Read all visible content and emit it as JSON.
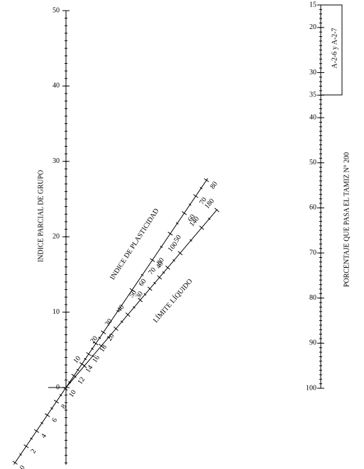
{
  "left_axis": {
    "title": "INDICE PARCIAL DE GRUPO",
    "ticks": [
      0,
      10,
      20,
      30,
      40,
      50
    ]
  },
  "right_axis": {
    "title": "PORCENTAJE QUE PASA EL TAMIZ N° 200",
    "ticks": [
      15,
      20,
      30,
      35,
      40,
      50,
      60,
      70,
      80,
      90,
      100
    ],
    "box_label": "A-2-6 y A-2-7"
  },
  "plasticity_index": {
    "title": "INDICE DE PLASTICIDAD",
    "ticks": [
      0,
      2,
      4,
      6,
      8,
      10,
      12,
      14,
      16,
      18,
      20,
      30,
      40,
      50,
      60,
      70,
      80
    ]
  },
  "liquid_limit": {
    "title": "LÍMITE LÍQUIDO",
    "ticks": [
      10,
      20,
      30,
      40,
      50,
      60,
      70,
      80,
      100,
      140,
      180
    ]
  }
}
